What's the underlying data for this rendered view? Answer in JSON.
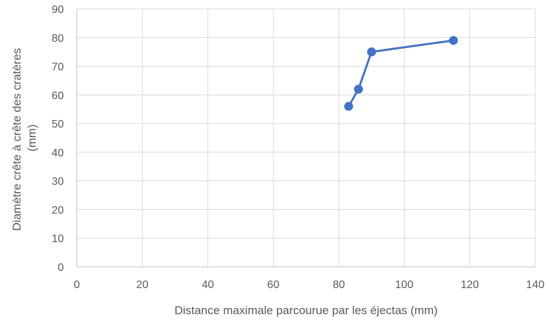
{
  "chart_data": {
    "type": "scatter",
    "title": "",
    "xlabel": "Distance maximale parcourue par les éjectas (mm)",
    "ylabel_lines": [
      "Diamètre crête à crête des cratères",
      "(mm)"
    ],
    "xlim": [
      0,
      140
    ],
    "ylim": [
      0,
      90
    ],
    "x_ticks": [
      0,
      20,
      40,
      60,
      80,
      100,
      120,
      140
    ],
    "y_ticks": [
      0,
      10,
      20,
      30,
      40,
      50,
      60,
      70,
      80,
      90
    ],
    "grid": true,
    "legend": "none",
    "series": [
      {
        "x": [
          83,
          86,
          90,
          115
        ],
        "y": [
          56,
          62,
          75,
          79
        ],
        "color": "#4472C4",
        "connected": true
      }
    ]
  },
  "colors": {
    "gridline": "#D9D9D9",
    "axis_line": "#BFBFBF",
    "text": "#595959"
  }
}
